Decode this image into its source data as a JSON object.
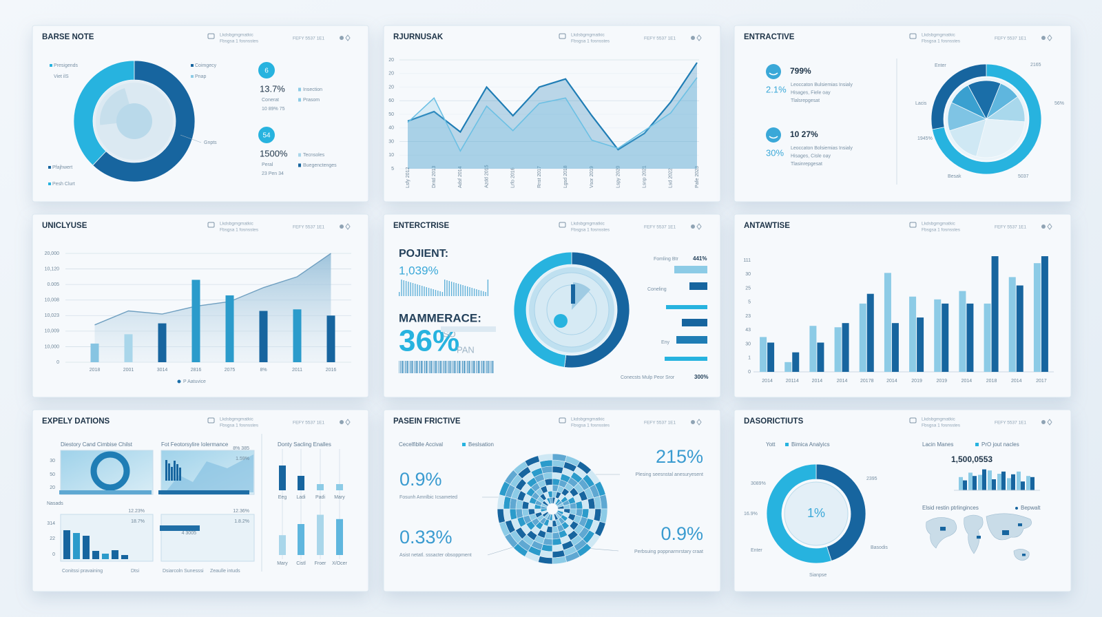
{
  "panels": [
    {
      "title": "BARSE NOTE",
      "header": [
        "Lkdsbgmgmatkic",
        "Fbsgsa 1 fosnsstes",
        "FEFY 5537 1E1"
      ],
      "legend": [
        "Presigends",
        "Viet ilS",
        "Coimgecy",
        "Pnap",
        "Gnpts",
        "Pfajhwert",
        "Pesh Clurt"
      ],
      "kpis": [
        {
          "icon": "6",
          "value": "13.7%",
          "label": "Conerat",
          "sub": "10 89% 75"
        },
        {
          "icon": "54",
          "value": "1500%",
          "label": "Peral",
          "sub": "23 Pen 34"
        }
      ],
      "tags": [
        "Insection",
        "Prasom",
        "Tecnsoles",
        "Buegenctenges"
      ],
      "chart": {
        "type": "pie",
        "values": [
          38,
          62
        ],
        "colors": [
          "#27b3df",
          "#17659f"
        ]
      }
    },
    {
      "title": "RJURNUSAK",
      "header": [
        "Lkdsbgmgmatkic",
        "Fbsgsa 1 fosnsstes",
        "FEFY 5537 1E1"
      ],
      "chart": {
        "type": "line",
        "categories": [
          "Lsfy 2012",
          "Dntd 2013",
          "Adsf 2014",
          "Azdd 2015",
          "Lrfo 2016",
          "Rnst 2017",
          "Lgsd 2018",
          "Vsor 2019",
          "Lspy 2020",
          "Lsnp 2021",
          "Lsd 2022",
          "Pafe 2023"
        ],
        "series": [
          {
            "color": "#1f7db5",
            "values": [
              35,
              42,
              27,
              60,
              39,
              60,
              66,
              39,
              14,
              26,
              49,
              78
            ]
          },
          {
            "color": "#6cc0e4",
            "values": [
              34,
              52,
              13,
              46,
              28,
              48,
              52,
              21,
              15,
              28,
              41,
              67
            ]
          }
        ],
        "ylim": [
          0,
          80
        ],
        "yticks": [
          {
            "value": 0,
            "label": "5"
          },
          10,
          {
            "value": 20,
            "label": "30"
          },
          {
            "value": 30,
            "label": "40"
          },
          {
            "value": 40,
            "label": "50"
          },
          {
            "value": 50,
            "label": "60"
          },
          {
            "value": 60,
            "label": "20"
          },
          {
            "value": 70,
            "label": "20"
          },
          {
            "value": 80,
            "label": "20"
          }
        ],
        "grid": true
      }
    },
    {
      "title": "ENTRACTIVE",
      "header": [
        "Lkdsbgmgmatkic",
        "Fbsgsa 1 fosnsstes",
        "FEFY 5537 1E1"
      ],
      "kpis": [
        {
          "value": "799%",
          "sub": "2.1%",
          "lines": [
            "Leoccaton Bulsiemias Insialy",
            "Hisages, Fiele oay",
            "Tlalsrepgesat"
          ]
        },
        {
          "value": "10 27%",
          "sub": "30%",
          "lines": [
            "Leoccaton Bolsiemias Insialy",
            "Hisages, Cisle oay",
            "Tlasinrepgesat"
          ]
        }
      ],
      "labels": [
        "Enter",
        "2165",
        "Lacis",
        "56%",
        "1945%",
        "Besak",
        "5037"
      ],
      "chart": {
        "type": "pie",
        "values": [
          72,
          28
        ],
        "colors": [
          "#27b3df",
          "#17659f"
        ],
        "inner": {
          "values": [
            16,
            12,
            10,
            14,
            9,
            11,
            28
          ],
          "colors": [
            "#cfe8f4",
            "#7fc4e4",
            "#3aa0d0",
            "#1a6ea8",
            "#5fb6de",
            "#a9d8ec",
            "#e4f1f8"
          ]
        }
      }
    },
    {
      "title": "UNICLYUSE",
      "header": [
        "Lkdsbgmgmatkic",
        "Fbsgsa 1 fosnsstes",
        "FEFY 5537 1E1"
      ],
      "chart": {
        "type": "bar",
        "categories": [
          "2018",
          "2001",
          "3014",
          "2816",
          "2075",
          "8%",
          "2011",
          "2016"
        ],
        "series": [
          {
            "name": "P Aatuvice",
            "color": "#1a6ea8",
            "values": [
              1.2,
              1.8,
              2.5,
              5.3,
              4.3,
              3.3,
              3.4,
              3.0
            ]
          }
        ],
        "colors": [
          "#86c4e2",
          "#a9d6ea",
          "#17659f",
          "#2b9bcb",
          "#2b9bcb",
          "#17659f",
          "#2b9bcb",
          "#17659f"
        ],
        "area": {
          "color": "#a7c9de",
          "values": [
            2.4,
            3.3,
            3.1,
            3.6,
            3.9,
            4.8,
            5.5,
            7.0
          ]
        },
        "ylim": [
          0,
          7
        ],
        "yticks": [
          0,
          {
            "value": 1,
            "label": "10,000"
          },
          {
            "value": 2,
            "label": "10,009"
          },
          {
            "value": 3,
            "label": "10,023"
          },
          {
            "value": 4,
            "label": "10,008"
          },
          {
            "value": 5,
            "label": "0.005"
          },
          {
            "value": 6,
            "label": "10,120"
          },
          {
            "value": 7,
            "label": "20,000"
          }
        ],
        "grid": true
      }
    },
    {
      "title": "ENTERCTRISE",
      "header": [
        "Lkdsbgmgmatkic",
        "Fbsgsa 1 fosnsstes",
        "FEFY 5537 1E1"
      ],
      "kpis": [
        "POJIENT:",
        "1,039%",
        "MAMMERACE:",
        "36%",
        "SO",
        "PAN"
      ],
      "list": {
        "labels": [
          "Fomling Btr",
          "Coneling",
          "Eny",
          "Conecsts Mulp Peor Sror"
        ],
        "values": [
          "441%",
          "300%"
        ]
      },
      "chart": {
        "type": "bar",
        "values": [
          48,
          26,
          60,
          37,
          45,
          62
        ],
        "colors": [
          "#8ccbe6",
          "#17659f",
          "#27b3df",
          "#17659f",
          "#1f7db5",
          "#27b3df"
        ],
        "donut": {
          "values": [
            52,
            48
          ],
          "colors": [
            "#17659f",
            "#27b3df"
          ]
        }
      }
    },
    {
      "title": "ANTAWTISE",
      "header": [
        "Lkdsbgmgmatkic",
        "Fbsgsa 1 fosnsstes",
        "FEFY 5537 1E1"
      ],
      "chart": {
        "type": "bar",
        "categories": [
          "2014",
          "20114",
          "2014",
          "2014",
          "20178",
          "2014",
          "2019",
          "2019",
          "2014",
          "2018",
          "2014",
          "2017"
        ],
        "series": [
          {
            "color": "#8ccbe6",
            "values": [
              2.5,
              0.7,
              3.3,
              3.2,
              4.9,
              7.1,
              5.4,
              5.2,
              5.8,
              4.9,
              6.8,
              7.8
            ]
          },
          {
            "color": "#17659f",
            "values": [
              2.1,
              1.4,
              2.1,
              3.5,
              5.6,
              3.5,
              3.9,
              4.9,
              4.9,
              8.3,
              6.2,
              8.3
            ]
          }
        ],
        "ylim": [
          0,
          8.5
        ],
        "yticks": [
          0,
          1,
          {
            "value": 2,
            "label": "30"
          },
          {
            "value": 3,
            "label": "43"
          },
          {
            "value": 4,
            "label": "23"
          },
          5,
          {
            "value": 6,
            "label": "25"
          },
          {
            "value": 7,
            "label": "30"
          },
          {
            "value": 8,
            "label": "111"
          }
        ]
      }
    },
    {
      "title": "EXPELY DATIONS",
      "header": [
        "Lkdsbgmgmatkic",
        "Fbsgsa 1 fosnsstes",
        "FEFY 5537 1E1"
      ],
      "subtitles": [
        "Diestory Cand Cimbise Chilst",
        "Fot Feotorsylire Iolermance",
        "Donty Sacling Enalles"
      ],
      "axis_labels": [
        "30",
        "50",
        "20",
        "Nasads",
        "314",
        "22",
        "0"
      ],
      "tile_labels": [
        "8% 385",
        "1.59%",
        "12.23%",
        "18.7%",
        "12.36%",
        "1.8.2%",
        "4 3005"
      ],
      "captions": [
        "Conitssi pravaining",
        "Dtsi",
        "Dsiarcoln Sunesssi",
        "Zeaulle intuds"
      ],
      "top_labels": [
        "Eeg",
        "Ladi",
        "Padi",
        "Mary"
      ],
      "bottom_labels": [
        "Mary",
        "Cistl",
        "Froer",
        "X/Ocer"
      ],
      "chart": {
        "type": "bar",
        "bars": [
          4.2,
          3.8,
          3.4,
          1.2,
          0.8,
          1.3,
          0.6
        ],
        "top": [
          3.6,
          2.1,
          0.9,
          0.9
        ],
        "bottom": [
          3.2,
          5.0,
          6.5,
          5.8
        ]
      }
    },
    {
      "title": "PASEIN FRICTIVE",
      "header": [
        "Lkdsbgmgmatkic",
        "Fbsgsa 1 fosnsstes",
        "FEFY 5537 1E1"
      ],
      "legend": [
        "Cecelfiblle Accival",
        "Beslsation"
      ],
      "kpis": [
        {
          "value": "0.9%",
          "label": "Fosunh Amnlbic Icsameted"
        },
        {
          "value": "0.33%",
          "label": "Asist netatl. sssacter obsoppment"
        },
        {
          "value": "215%",
          "label": "Plesing seesnstal anesuryesent"
        },
        {
          "value": "0.9%",
          "label": "Perbsuing poppnarmrstary craat"
        }
      ]
    },
    {
      "title": "DASORICTIUTS",
      "header": [
        "Lkdsbgmgmatkic",
        "Fbsgsa 1 fosnsstes",
        "FEFY 5537 1E1"
      ],
      "legend": [
        "Yott",
        "Bimica Analyics",
        "Lacin Manes",
        "PrO jout nacles"
      ],
      "total": "1,500,0553",
      "labels": [
        "2395",
        "3089%",
        "16.9%",
        "Enter",
        "Sianpse",
        "Basodis",
        "1%"
      ],
      "notes": [
        "Elsid restin ptrlinginces",
        "Bepwalt"
      ],
      "chart": {
        "type": "pie",
        "values": [
          45,
          55
        ],
        "colors": [
          "#17659f",
          "#27b3df"
        ],
        "bars": {
          "light": [
            2.4,
            3.2,
            2.8,
            3.6,
            3.0,
            2.2,
            3.4,
            2.6
          ],
          "dark": [
            1.8,
            2.6,
            3.8,
            2.0,
            3.4,
            2.9,
            1.6,
            2.4
          ],
          "colors": [
            "#8ccbe6",
            "#17659f"
          ]
        }
      }
    }
  ]
}
